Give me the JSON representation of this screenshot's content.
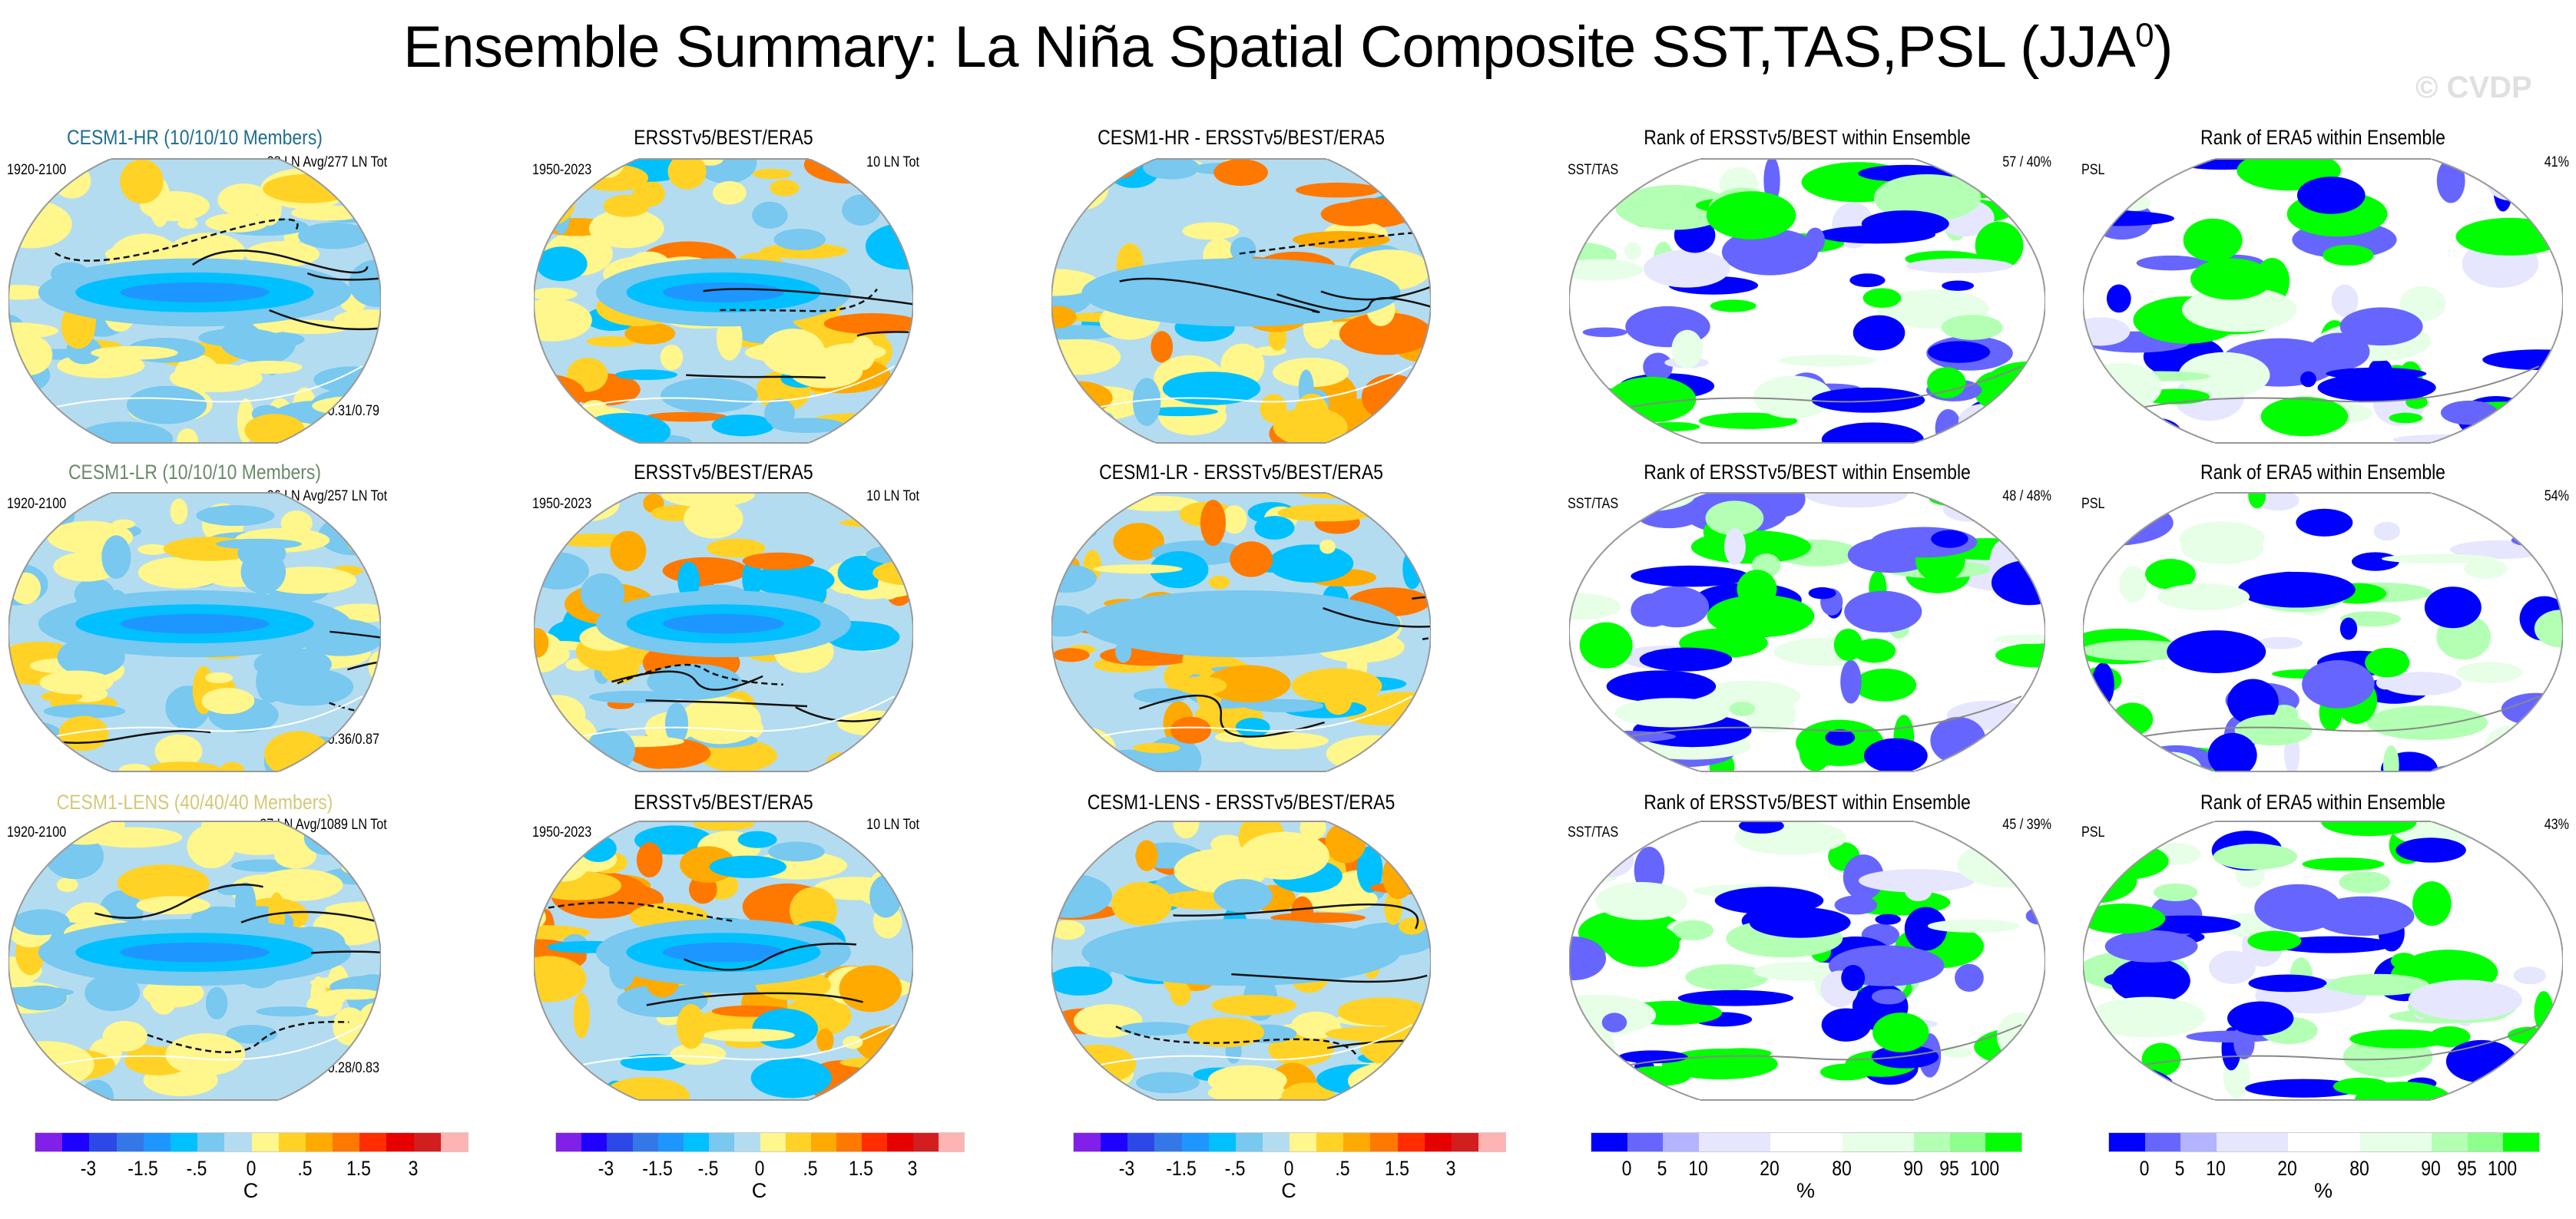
{
  "title": "Ensemble Summary: La Niña Spatial Composite SST,TAS,PSL (JJA",
  "title_sup": "0",
  "title_close": ")",
  "watermark": "© CVDP",
  "chart_data": {
    "type": "heatmap",
    "rows": [
      {
        "panels": [
          {
            "title": "CESM1-HR (10/10/10 Members)",
            "title_color": "#1f6e8c",
            "left": "1920-2100",
            "right": "28 LN Avg/277 LN Tot",
            "bottom": "r=0.81/0.31/0.79"
          },
          {
            "title": "ERSSTv5/BEST/ERA5",
            "title_color": "#000000",
            "left": "1950-2023",
            "right": "10 LN Tot",
            "bottom": ""
          },
          {
            "title": "CESM1-HR - ERSSTv5/BEST/ERA5",
            "title_color": "#000000",
            "left": "",
            "right": "",
            "bottom": ""
          },
          {
            "title": "Rank of ERSSTv5/BEST within Ensemble",
            "title_color": "#000000",
            "left": "SST/TAS",
            "right": "57 /  40%",
            "bottom": ""
          },
          {
            "title": "Rank of ERA5 within Ensemble",
            "title_color": "#000000",
            "left": "PSL",
            "right": "41%",
            "bottom": ""
          }
        ]
      },
      {
        "panels": [
          {
            "title": "CESM1-LR (10/10/10 Members)",
            "title_color": "#6a8a68",
            "left": "1920-2100",
            "right": "26 LN Avg/257 LN Tot",
            "bottom": "r=0.80/0.36/0.87"
          },
          {
            "title": "ERSSTv5/BEST/ERA5",
            "title_color": "#000000",
            "left": "1950-2023",
            "right": "10 LN Tot",
            "bottom": ""
          },
          {
            "title": "CESM1-LR - ERSSTv5/BEST/ERA5",
            "title_color": "#000000",
            "left": "",
            "right": "",
            "bottom": ""
          },
          {
            "title": "Rank of ERSSTv5/BEST within Ensemble",
            "title_color": "#000000",
            "left": "SST/TAS",
            "right": "48 /  48%",
            "bottom": ""
          },
          {
            "title": "Rank of ERA5 within Ensemble",
            "title_color": "#000000",
            "left": "PSL",
            "right": "54%",
            "bottom": ""
          }
        ]
      },
      {
        "panels": [
          {
            "title": "CESM1-LENS (40/40/40 Members)",
            "title_color": "#d4c878",
            "left": "1920-2100",
            "right": "27 LN Avg/1089 LN Tot",
            "bottom": "r=0.81/0.28/0.83"
          },
          {
            "title": "ERSSTv5/BEST/ERA5",
            "title_color": "#000000",
            "left": "1950-2023",
            "right": "10 LN Tot",
            "bottom": ""
          },
          {
            "title": "CESM1-LENS - ERSSTv5/BEST/ERA5",
            "title_color": "#000000",
            "left": "",
            "right": "",
            "bottom": ""
          },
          {
            "title": "Rank of ERSSTv5/BEST within Ensemble",
            "title_color": "#000000",
            "left": "SST/TAS",
            "right": "45 /  39%",
            "bottom": ""
          },
          {
            "title": "Rank of ERA5 within Ensemble",
            "title_color": "#000000",
            "left": "PSL",
            "right": "43%",
            "bottom": ""
          }
        ]
      }
    ],
    "temp_colorbar": {
      "unit": "C",
      "colors": [
        "#8020e8",
        "#2000ff",
        "#2d48e8",
        "#3478e8",
        "#1e96ff",
        "#00c0ff",
        "#78c8f0",
        "#b4dcf0",
        "#fff68c",
        "#ffd225",
        "#ffaa00",
        "#ff7800",
        "#ff2d00",
        "#e60000",
        "#d21e1e",
        "#ffb4b4"
      ],
      "labels": [
        "-3",
        "-1.5",
        "-.5",
        "0",
        ".5",
        "1.5",
        "3"
      ],
      "label_boundaries": [
        2,
        4,
        6,
        8,
        10,
        12,
        14
      ]
    },
    "rank_colorbar": {
      "unit": "%",
      "colors": [
        "#0000ff",
        "#6666ff",
        "#b3b3ff",
        "#e6e6ff",
        "#ffffff",
        "#e6ffe6",
        "#b3ffb3",
        "#8cff8c",
        "#00ff00"
      ],
      "widths": [
        1,
        1,
        1,
        2,
        2,
        2,
        1,
        1,
        1
      ],
      "labels": [
        "0",
        "5",
        "10",
        "20",
        "80",
        "90",
        "95",
        "100"
      ],
      "label_boundaries": [
        1,
        2,
        3,
        4,
        5,
        6,
        7,
        8
      ]
    }
  }
}
